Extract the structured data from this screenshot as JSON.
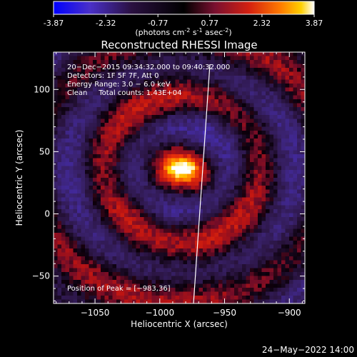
{
  "colorbar": {
    "ticks": [
      "-3.87",
      "-2.32",
      "-0.77",
      "0.77",
      "2.32",
      "3.87"
    ],
    "range": [
      -3.87,
      3.87
    ],
    "unit_label": "(photons cm",
    "unit_sup1": "-2",
    "unit_mid": " s",
    "unit_sup2": "-1",
    "unit_mid2": " asec",
    "unit_sup3": "-2",
    "unit_end": ")",
    "colors": [
      "#0000ff",
      "#5a2ab8",
      "#2a1040",
      "#000000",
      "#7a1030",
      "#d42010",
      "#ff7a00",
      "#ffd000",
      "#ffffff"
    ]
  },
  "chart_data": {
    "type": "heatmap",
    "title": "Reconstructed RHESSI Image",
    "xlabel": "Heliocentric X (arcsec)",
    "ylabel": "Heliocentric Y (arcsec)",
    "xlim": [
      -1082,
      -888
    ],
    "ylim": [
      -72,
      130
    ],
    "xticks": [
      -1050,
      -1000,
      -950,
      -900
    ],
    "xtick_labels": [
      "−1050",
      "−1000",
      "−950",
      "−900"
    ],
    "yticks": [
      -50,
      0,
      50,
      100
    ],
    "ytick_labels": [
      "−50",
      "0",
      "50",
      "100"
    ],
    "peak": [
      -983,
      36
    ],
    "vmin": -3.87,
    "vmax": 3.87,
    "annotations": [
      "20−Dec−2015 09:34:32.000 to 09:40:32.000",
      "Detectors: 1F 5F 7F, Att 0",
      "Energy Range: 3.0 − 6.0 keV",
      "Clean     Total counts: 1.43E+04"
    ],
    "peak_text": "Position of Peak = [−983,36]"
  },
  "footer": {
    "date": "24−May−2022 14:00"
  }
}
